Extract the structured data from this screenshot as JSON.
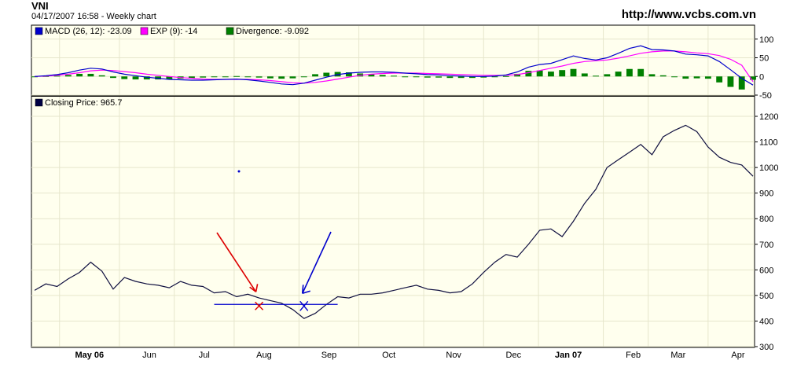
{
  "header": {
    "title": "VNI",
    "subtitle": "04/17/2007 16:58 - Weekly chart",
    "url": "http://www.vcbs.com.vn"
  },
  "colors": {
    "background": "#ffffee",
    "macd": "#0000cc",
    "exp": "#ff00ff",
    "divergence": "#008000",
    "price": "#101040",
    "annotation_red": "#dd0000",
    "annotation_blue": "#0000cc"
  },
  "chart_data": [
    {
      "type": "line",
      "panel": "macd",
      "legend": [
        {
          "label": "MACD (26, 12): -23.09",
          "color": "#0000cc"
        },
        {
          "label": "EXP (9): -14",
          "color": "#ff00ff"
        },
        {
          "label": "Divergence: -9.092",
          "color": "#008000"
        }
      ],
      "y_ticks": [
        -50,
        0,
        50,
        100
      ],
      "ylim": [
        -50,
        110
      ],
      "x": [
        0,
        1,
        2,
        3,
        4,
        5,
        6,
        7,
        8,
        9,
        10,
        11,
        12,
        13,
        14,
        15,
        16,
        17,
        18,
        19,
        20,
        21,
        22,
        23,
        24,
        25,
        26,
        27,
        28,
        29,
        30,
        31,
        32,
        33,
        34,
        35,
        36,
        37,
        38,
        39,
        40,
        41,
        42,
        43,
        44,
        45,
        46,
        47,
        48,
        49,
        50,
        51,
        52,
        53,
        54,
        55,
        56,
        57,
        58,
        59,
        60,
        61,
        62,
        63,
        64
      ],
      "series": [
        {
          "name": "MACD (26, 12)",
          "values": [
            0,
            2,
            5,
            10,
            17,
            22,
            20,
            12,
            6,
            2,
            -2,
            -5,
            -8,
            -9,
            -10,
            -10,
            -9,
            -8,
            -7,
            -9,
            -12,
            -16,
            -20,
            -22,
            -18,
            -10,
            -2,
            5,
            9,
            11,
            12,
            12,
            11,
            9,
            7,
            5,
            4,
            2,
            1,
            0,
            0,
            1,
            4,
            12,
            25,
            32,
            35,
            45,
            55,
            48,
            44,
            50,
            62,
            75,
            82,
            72,
            71,
            68,
            60,
            58,
            55,
            40,
            18,
            -5,
            -23
          ]
        },
        {
          "name": "EXP (9)",
          "values": [
            0,
            1,
            3,
            6,
            10,
            15,
            17,
            16,
            13,
            10,
            6,
            3,
            0,
            -3,
            -5,
            -7,
            -8,
            -8,
            -8,
            -8,
            -9,
            -11,
            -14,
            -17,
            -18,
            -16,
            -12,
            -7,
            -2,
            3,
            6,
            8,
            9,
            9,
            9,
            8,
            7,
            6,
            5,
            4,
            3,
            3,
            3,
            5,
            10,
            16,
            22,
            28,
            35,
            40,
            42,
            44,
            49,
            55,
            62,
            66,
            68,
            68,
            66,
            63,
            61,
            56,
            46,
            30,
            -14
          ]
        },
        {
          "name": "Divergence",
          "values": [
            0,
            1,
            2,
            4,
            7,
            7,
            3,
            -4,
            -7,
            -8,
            -8,
            -8,
            -8,
            -6,
            -5,
            -3,
            -1,
            0,
            1,
            -1,
            -3,
            -5,
            -6,
            -5,
            0,
            6,
            10,
            12,
            11,
            8,
            6,
            4,
            2,
            0,
            -2,
            -3,
            -3,
            -4,
            -4,
            -4,
            -3,
            -2,
            1,
            7,
            15,
            16,
            13,
            17,
            20,
            8,
            2,
            6,
            13,
            20,
            20,
            6,
            3,
            0,
            -6,
            -5,
            -6,
            -16,
            -28,
            -35,
            -9
          ]
        }
      ]
    },
    {
      "type": "line",
      "panel": "price",
      "legend": [
        {
          "label": "Closing Price: 965.7",
          "color": "#000044"
        }
      ],
      "y_ticks": [
        300,
        400,
        500,
        600,
        700,
        800,
        900,
        1000,
        1100,
        1200
      ],
      "ylim": [
        300,
        1200
      ],
      "x_labels": [
        "May 06",
        "Jun",
        "Jul",
        "Aug",
        "Sep",
        "Oct",
        "Nov",
        "Dec",
        "Jan 07",
        "Feb",
        "Mar",
        "Apr"
      ],
      "x": [
        0,
        1,
        2,
        3,
        4,
        5,
        6,
        7,
        8,
        9,
        10,
        11,
        12,
        13,
        14,
        15,
        16,
        17,
        18,
        19,
        20,
        21,
        22,
        23,
        24,
        25,
        26,
        27,
        28,
        29,
        30,
        31,
        32,
        33,
        34,
        35,
        36,
        37,
        38,
        39,
        40,
        41,
        42,
        43,
        44,
        45,
        46,
        47,
        48,
        49,
        50,
        51,
        52,
        53,
        54,
        55,
        56,
        57,
        58,
        59,
        60,
        61,
        62,
        63,
        64
      ],
      "series": [
        {
          "name": "Closing Price",
          "values": [
            520,
            545,
            535,
            565,
            590,
            630,
            595,
            525,
            570,
            555,
            545,
            540,
            530,
            555,
            540,
            535,
            510,
            515,
            495,
            505,
            490,
            480,
            470,
            445,
            410,
            430,
            465,
            495,
            490,
            505,
            505,
            510,
            520,
            530,
            540,
            525,
            520,
            510,
            515,
            545,
            590,
            630,
            660,
            650,
            700,
            755,
            760,
            730,
            790,
            860,
            915,
            1000,
            1030,
            1060,
            1090,
            1050,
            1120,
            1145,
            1165,
            1140,
            1080,
            1040,
            1020,
            1010,
            966
          ]
        }
      ],
      "annotations": {
        "support_line_value": 465,
        "support_line_from_x": 16,
        "support_line_to_x": 27,
        "red_cross_x": 20,
        "blue_cross_x": 24
      }
    }
  ]
}
